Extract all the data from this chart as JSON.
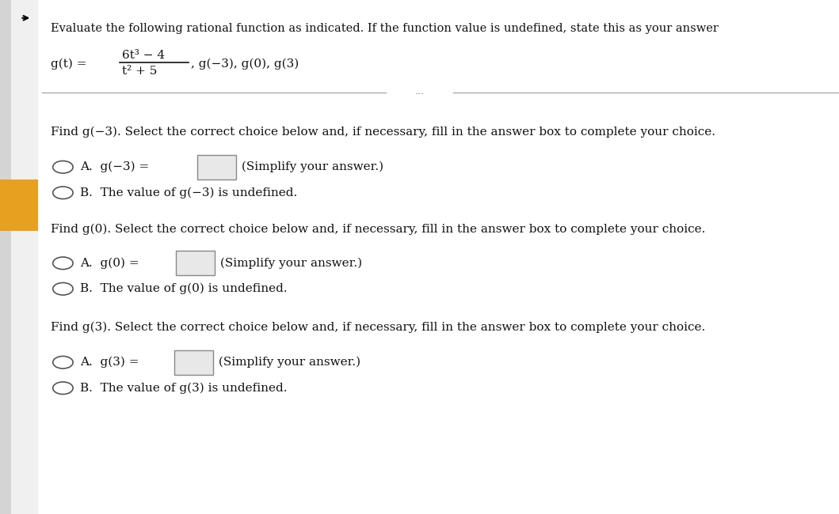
{
  "bg_color": "#f0f0f0",
  "main_bg": "#ffffff",
  "sidebar_color": "#d4d4d4",
  "sidebar_accent": "#e8a020",
  "header_text": "Evaluate the following rational function as indicated. If the function value is undefined, state this as your answer",
  "function_line1": "6t³ − 4",
  "function_line2": "t² + 5",
  "function_prefix": "g(t) =",
  "function_suffix": ", g(−3), g(0), g(3)",
  "separator_dots": "...",
  "section1_prompt": "Find g(−3). Select the correct choice below and, if necessary, fill in the answer box to complete your choice.",
  "section1_choiceA": "A.  g(−3) =",
  "section1_choiceA_suffix": " (Simplify your answer.)",
  "section1_choiceB": "B.  The value of g(−3) is undefined.",
  "section2_prompt": "Find g(0). Select the correct choice below and, if necessary, fill in the answer box to complete your choice.",
  "section2_choiceA": "A.  g(0) =",
  "section2_choiceA_suffix": " (Simplify your answer.)",
  "section2_choiceB": "B.  The value of g(0) is undefined.",
  "section3_prompt": "Find g(3). Select the correct choice below and, if necessary, fill in the answer box to complete your choice.",
  "section3_choiceA": "A.  g(3) =",
  "section3_choiceA_suffix": " (Simplify your answer.)",
  "section3_choiceB": "B.  The value of g(3) is undefined.",
  "circle_color": "#ffffff",
  "circle_edge": "#555555",
  "text_color": "#111111",
  "bold_text_color": "#000000",
  "font_size_header": 10.5,
  "font_size_body": 11.0,
  "font_size_choice": 11.0
}
